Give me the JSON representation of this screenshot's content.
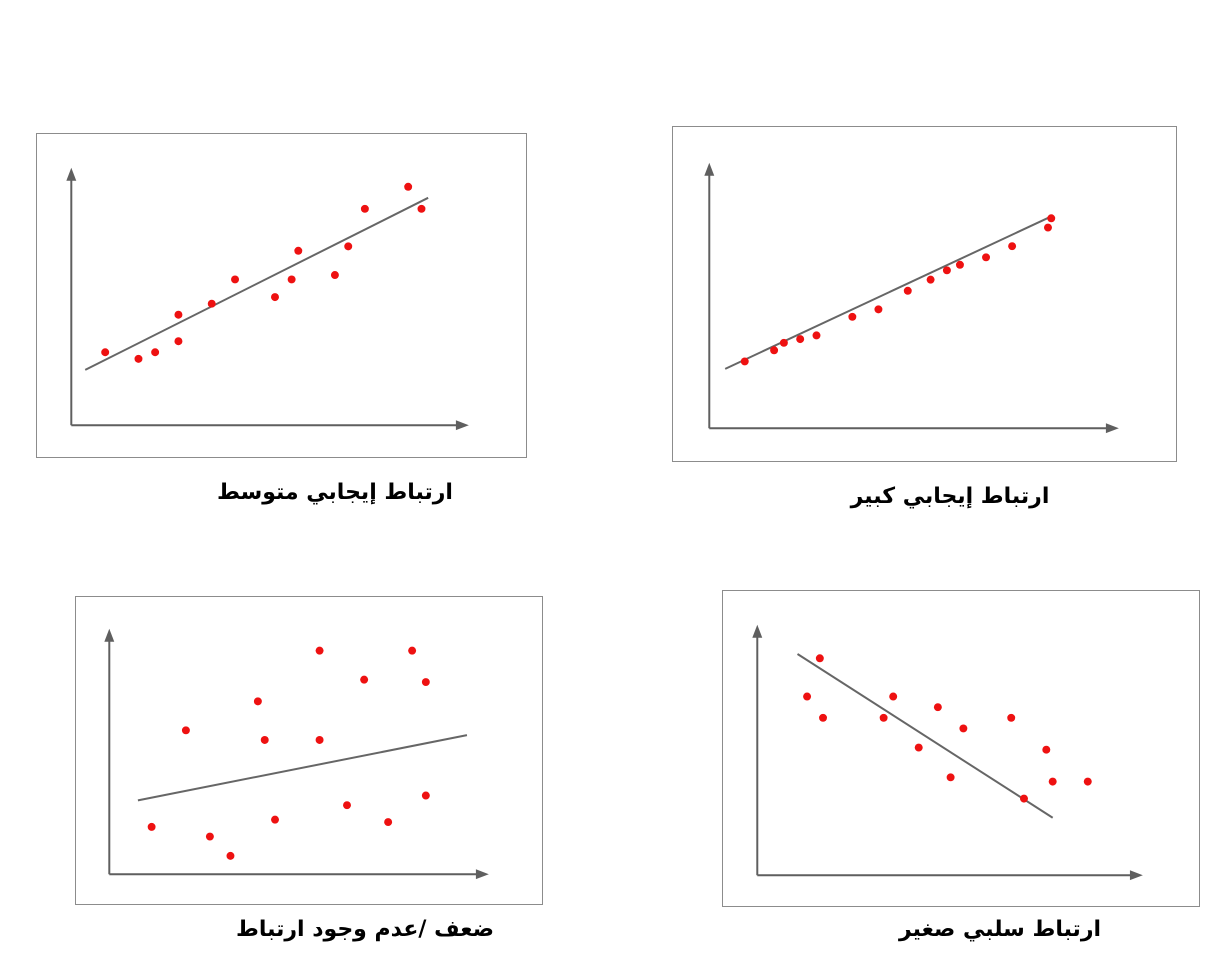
{
  "chart_data": [
    {
      "type": "scatter",
      "title": "ارتباط إيجابي كبير",
      "xlabel": "",
      "ylabel": "",
      "xlim": [
        0,
        100
      ],
      "ylim": [
        0,
        100
      ],
      "grid": false,
      "x": [
        6,
        15,
        18,
        23,
        28,
        39,
        47,
        56,
        63,
        68,
        72,
        80,
        88,
        99,
        100
      ],
      "y": [
        14,
        20,
        24,
        26,
        28,
        38,
        42,
        52,
        58,
        63,
        66,
        70,
        76,
        86,
        91
      ],
      "trendline": {
        "x": [
          0,
          100
        ],
        "y": [
          10,
          92
        ]
      },
      "marker_color": "#ee1111",
      "line_color": "#666666"
    },
    {
      "type": "scatter",
      "title": "ارتباط إيجابي متوسط",
      "xlabel": "",
      "ylabel": "",
      "xlim": [
        0,
        100
      ],
      "ylim": [
        0,
        100
      ],
      "grid": false,
      "x": [
        6,
        16,
        21,
        28,
        28,
        38,
        45,
        57,
        62,
        64,
        75,
        79,
        84,
        97,
        101
      ],
      "y": [
        20,
        17,
        20,
        25,
        37,
        42,
        53,
        45,
        53,
        66,
        55,
        68,
        85,
        95,
        85
      ],
      "trendline": {
        "x": [
          0,
          103
        ],
        "y": [
          12,
          90
        ]
      },
      "marker_color": "#ee1111",
      "line_color": "#666666"
    },
    {
      "type": "scatter",
      "title": "ارتباط سلبي صغير",
      "xlabel": "",
      "ylabel": "",
      "xlim": [
        0,
        100
      ],
      "ylim": [
        0,
        100
      ],
      "grid": false,
      "x": [
        10,
        14,
        15,
        34,
        37,
        45,
        51,
        55,
        59,
        74,
        78,
        85,
        87,
        98
      ],
      "y": [
        70,
        88,
        60,
        60,
        70,
        46,
        65,
        32,
        55,
        60,
        22,
        45,
        30,
        30
      ],
      "trendline": {
        "x": [
          7,
          87
        ],
        "y": [
          90,
          13
        ]
      },
      "marker_color": "#ee1111",
      "line_color": "#666666"
    },
    {
      "type": "scatter",
      "title": "ضعف /عدم وجود ارتباط",
      "xlabel": "",
      "ylabel": "",
      "xlim": [
        0,
        100
      ],
      "ylim": [
        0,
        100
      ],
      "grid": false,
      "x": [
        8,
        18,
        25,
        31,
        39,
        41,
        44,
        57,
        57,
        65,
        70,
        77,
        84,
        88,
        88
      ],
      "y": [
        20,
        60,
        16,
        8,
        72,
        56,
        23,
        93,
        56,
        29,
        81,
        22,
        93,
        80,
        33
      ],
      "trendline": {
        "x": [
          4,
          100
        ],
        "y": [
          31,
          58
        ]
      },
      "marker_color": "#ee1111",
      "line_color": "#666666"
    }
  ]
}
